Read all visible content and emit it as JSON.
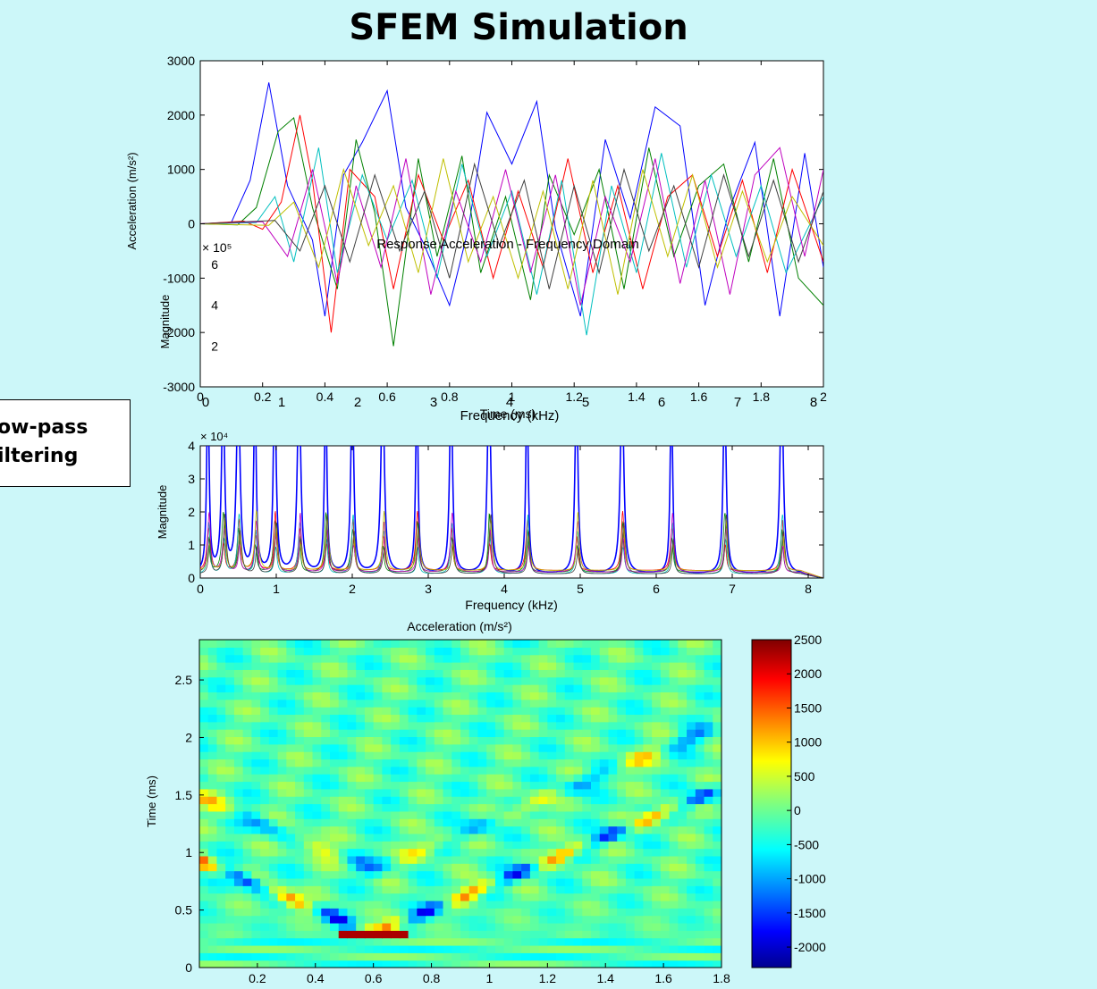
{
  "slide_title": "SFEM Simulation",
  "side_label": "ow-pass\niltering",
  "chart_data": [
    {
      "type": "line",
      "title": "",
      "xlabel": "Time (ms)",
      "ylabel": "Acceleration (m/s²)",
      "xlim": [
        0,
        2
      ],
      "ylim": [
        -3000,
        3000
      ],
      "xticks": [
        "0",
        "0.2",
        "0.4",
        "0.6",
        "0.8",
        "1",
        "1.2",
        "1.4",
        "1.6",
        "1.8",
        "2"
      ],
      "yticks": [
        "3000",
        "2000",
        "1000",
        "0",
        "-1000",
        "-2000",
        "-3000"
      ],
      "series": [
        {
          "color": "#0000ff",
          "x": [
            0,
            0.1,
            0.16,
            0.22,
            0.28,
            0.36,
            0.4,
            0.46,
            0.52,
            0.6,
            0.66,
            0.72,
            0.8,
            0.86,
            0.92,
            1.0,
            1.08,
            1.14,
            1.22,
            1.3,
            1.38,
            1.46,
            1.54,
            1.62,
            1.7,
            1.78,
            1.86,
            1.94,
            2.0
          ],
          "y": [
            0,
            30,
            800,
            2600,
            700,
            -300,
            -1700,
            900,
            1500,
            2450,
            300,
            -400,
            -1500,
            -100,
            2050,
            1100,
            2250,
            -100,
            -1700,
            1550,
            100,
            2150,
            1800,
            -1500,
            300,
            1500,
            -1700,
            1300,
            -800
          ]
        },
        {
          "color": "#008000",
          "x": [
            0,
            0.12,
            0.18,
            0.25,
            0.3,
            0.36,
            0.44,
            0.5,
            0.56,
            0.62,
            0.7,
            0.76,
            0.84,
            0.9,
            0.98,
            1.06,
            1.12,
            1.2,
            1.28,
            1.36,
            1.44,
            1.52,
            1.6,
            1.68,
            1.76,
            1.84,
            1.92,
            2.0
          ],
          "y": [
            0,
            -20,
            300,
            1700,
            1950,
            300,
            -1200,
            1550,
            200,
            -2250,
            1200,
            -600,
            1250,
            -900,
            500,
            -1400,
            900,
            -200,
            1000,
            -1200,
            1400,
            -600,
            700,
            1100,
            -700,
            1200,
            -1000,
            -1500
          ]
        },
        {
          "color": "#ff0000",
          "x": [
            0,
            0.14,
            0.2,
            0.26,
            0.32,
            0.36,
            0.42,
            0.48,
            0.56,
            0.62,
            0.7,
            0.78,
            0.86,
            0.94,
            1.02,
            1.1,
            1.18,
            1.26,
            1.34,
            1.42,
            1.5,
            1.58,
            1.66,
            1.74,
            1.82,
            1.9,
            2.0
          ],
          "y": [
            0,
            50,
            -100,
            400,
            2000,
            800,
            -2000,
            1000,
            500,
            -1200,
            900,
            -300,
            800,
            -1000,
            600,
            -800,
            1200,
            -900,
            700,
            -1200,
            500,
            900,
            -600,
            800,
            -900,
            1000,
            -700
          ]
        },
        {
          "color": "#00bfbf",
          "x": [
            0,
            0.18,
            0.24,
            0.3,
            0.38,
            0.44,
            0.52,
            0.6,
            0.68,
            0.76,
            0.84,
            0.92,
            1.0,
            1.08,
            1.16,
            1.24,
            1.32,
            1.4,
            1.48,
            1.56,
            1.64,
            1.72,
            1.8,
            1.88,
            2.0
          ],
          "y": [
            0,
            20,
            500,
            -700,
            1400,
            -900,
            900,
            -300,
            800,
            -1000,
            1100,
            -600,
            600,
            -1300,
            800,
            -2050,
            700,
            -900,
            1300,
            -800,
            900,
            -600,
            700,
            -900,
            500
          ]
        },
        {
          "color": "#bf00bf",
          "x": [
            0,
            0.2,
            0.28,
            0.36,
            0.44,
            0.5,
            0.58,
            0.66,
            0.74,
            0.82,
            0.9,
            0.98,
            1.06,
            1.14,
            1.22,
            1.3,
            1.38,
            1.46,
            1.54,
            1.62,
            1.7,
            1.78,
            1.86,
            1.94,
            2.0
          ],
          "y": [
            0,
            40,
            -600,
            1000,
            -1100,
            700,
            -800,
            1200,
            -1300,
            600,
            -700,
            1000,
            -900,
            900,
            -1500,
            500,
            -700,
            1200,
            -1100,
            800,
            -1300,
            900,
            1400,
            -600,
            1000
          ]
        },
        {
          "color": "#bfbf00",
          "x": [
            0,
            0.22,
            0.3,
            0.38,
            0.46,
            0.54,
            0.62,
            0.7,
            0.78,
            0.86,
            0.94,
            1.02,
            1.1,
            1.18,
            1.26,
            1.34,
            1.42,
            1.5,
            1.58,
            1.66,
            1.74,
            1.82,
            1.9,
            2.0
          ],
          "y": [
            0,
            -30,
            400,
            -800,
            1000,
            -400,
            700,
            -900,
            1200,
            -700,
            500,
            -1000,
            600,
            -1200,
            800,
            -1300,
            1000,
            -600,
            900,
            -800,
            600,
            -700,
            500,
            -400
          ]
        },
        {
          "color": "#404040",
          "x": [
            0,
            0.24,
            0.32,
            0.4,
            0.48,
            0.56,
            0.64,
            0.72,
            0.8,
            0.88,
            0.96,
            1.04,
            1.12,
            1.2,
            1.28,
            1.36,
            1.44,
            1.52,
            1.6,
            1.68,
            1.76,
            1.84,
            1.92,
            2.0
          ],
          "y": [
            0,
            60,
            -500,
            700,
            -700,
            900,
            -500,
            600,
            -1000,
            1100,
            -400,
            800,
            -1200,
            700,
            -900,
            1000,
            -500,
            700,
            -800,
            900,
            -600,
            800,
            -700,
            600
          ]
        }
      ]
    },
    {
      "type": "line",
      "title": "Response Acceleration - Frequency Domain",
      "xlabel": "Frequency (kHz)",
      "ylabel": "Magnitude",
      "multiplier": "× 10⁵",
      "xlim": [
        0,
        8
      ],
      "ylim": [
        0,
        7
      ],
      "xticks": [
        "0",
        "1",
        "2",
        "3",
        "4",
        "5",
        "6",
        "7",
        "8"
      ],
      "yticks": [
        "6",
        "4",
        "2"
      ]
    },
    {
      "type": "line",
      "title": "",
      "xlabel": "Frequency (kHz)",
      "ylabel": "Magnitude",
      "multiplier": "× 10⁴",
      "xlim": [
        0,
        8.2
      ],
      "ylim": [
        0,
        4
      ],
      "xticks": [
        "0",
        "1",
        "2",
        "3",
        "4",
        "5",
        "6",
        "7",
        "8"
      ],
      "yticks": [
        "4",
        "3",
        "2",
        "1",
        "0"
      ],
      "peaks_khz": [
        0.1,
        0.3,
        0.5,
        0.72,
        0.98,
        1.3,
        1.65,
        2.0,
        2.4,
        2.85,
        3.3,
        3.8,
        4.3,
        4.95,
        5.55,
        6.2,
        6.9,
        7.65
      ]
    },
    {
      "type": "heatmap",
      "title": "Acceleration (m/s²)",
      "xlabel": "",
      "ylabel": "Time (ms)",
      "xlim": [
        0,
        1.8
      ],
      "ylim": [
        0,
        2.85
      ],
      "xticks": [
        "0.2",
        "0.4",
        "0.6",
        "0.8",
        "1",
        "1.2",
        "1.4",
        "1.6",
        "1.8"
      ],
      "yticks": [
        "2.5",
        "2",
        "1.5",
        "1",
        "0.5",
        "0"
      ],
      "colorbar": {
        "min": -2300,
        "max": 2500,
        "ticks": [
          "2500",
          "2000",
          "1500",
          "1000",
          "500",
          "0",
          "-500",
          "-1000",
          "-1500",
          "-2000"
        ],
        "colormap": "jet"
      }
    }
  ]
}
